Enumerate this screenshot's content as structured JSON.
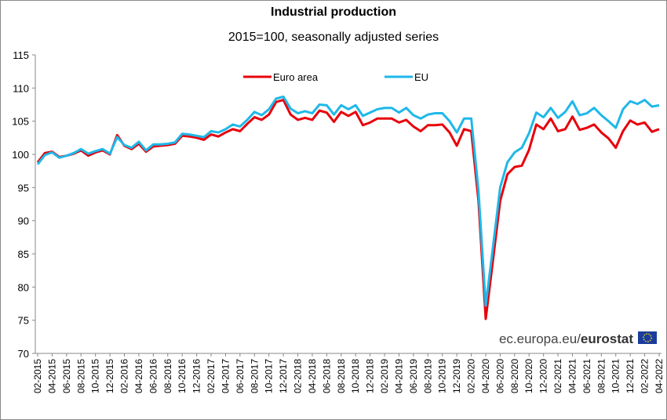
{
  "chart_data": {
    "type": "line",
    "title": "Industrial production",
    "subtitle": "2015=100, seasonally adjusted series",
    "source_prefix": "ec.europa.eu/",
    "source_brand": "eurostat",
    "legend": "top",
    "grid": false,
    "ylim": [
      70,
      115
    ],
    "yticks": [
      70,
      75,
      80,
      85,
      90,
      95,
      100,
      105,
      110,
      115
    ],
    "categories": [
      "02-2015",
      null,
      "04-2015",
      null,
      "06-2015",
      null,
      "08-2015",
      null,
      "10-2015",
      null,
      "12-2015",
      null,
      "02-2016",
      null,
      "04-2016",
      null,
      "06-2016",
      null,
      "08-2016",
      null,
      "10-2016",
      null,
      "12-2016",
      null,
      "02-2017",
      null,
      "04-2017",
      null,
      "06-2017",
      null,
      "08-2017",
      null,
      "10-2017",
      null,
      "12-2017",
      null,
      "02-2018",
      null,
      "04-2018",
      null,
      "06-2018",
      null,
      "08-2018",
      null,
      "10-2018",
      null,
      "12-2018",
      null,
      "02-2019",
      null,
      "04-2019",
      null,
      "06-2019",
      null,
      "08-2019",
      null,
      "10-2019",
      null,
      "12-2019",
      null,
      "02-2020",
      null,
      "04-2020",
      null,
      "06-2020",
      null,
      "08-2020",
      null,
      "10-2020",
      null,
      "12-2020",
      null,
      "02-2021",
      null,
      "04-2021",
      null,
      "06-2021",
      null,
      "08-2021",
      null,
      "10-2021",
      null,
      "12-2021",
      null,
      "02-2022",
      null,
      "04-2022"
    ],
    "series": [
      {
        "name": "Euro area",
        "color": "#e8000b",
        "values": [
          98.8,
          100.2,
          100.4,
          99.6,
          99.8,
          100.1,
          100.6,
          99.8,
          100.3,
          100.6,
          100.0,
          102.9,
          101.3,
          100.8,
          101.6,
          100.4,
          101.2,
          101.3,
          101.4,
          101.6,
          102.8,
          102.7,
          102.5,
          102.2,
          103.0,
          102.7,
          103.3,
          103.8,
          103.5,
          104.6,
          105.6,
          105.2,
          106.0,
          107.9,
          108.2,
          106.0,
          105.2,
          105.5,
          105.2,
          106.6,
          106.3,
          104.9,
          106.4,
          105.8,
          106.4,
          104.4,
          104.8,
          105.4,
          105.4,
          105.4,
          104.8,
          105.2,
          104.2,
          103.5,
          104.4,
          104.4,
          104.5,
          103.3,
          101.3,
          103.8,
          103.5,
          93.0,
          75.2,
          84.0,
          93.0,
          97.0,
          98.1,
          98.3,
          100.7,
          104.5,
          103.8,
          105.4,
          103.5,
          103.8,
          105.7,
          103.7,
          104.0,
          104.5,
          103.3,
          102.4,
          101.0,
          103.5,
          105.1,
          104.5,
          104.8,
          103.4,
          103.8
        ]
      },
      {
        "name": "EU",
        "color": "#1fb8e8",
        "values": [
          98.5,
          99.9,
          100.3,
          99.5,
          99.8,
          100.2,
          100.8,
          100.1,
          100.5,
          100.8,
          100.1,
          102.6,
          101.4,
          101.0,
          101.9,
          100.6,
          101.5,
          101.5,
          101.6,
          101.8,
          103.1,
          103.0,
          102.8,
          102.6,
          103.5,
          103.3,
          103.8,
          104.5,
          104.2,
          105.2,
          106.4,
          105.9,
          106.8,
          108.4,
          108.7,
          106.9,
          106.2,
          106.5,
          106.2,
          107.5,
          107.4,
          106.0,
          107.4,
          106.8,
          107.4,
          105.8,
          106.3,
          106.8,
          107.0,
          107.0,
          106.3,
          107.0,
          105.9,
          105.4,
          106.0,
          106.2,
          106.2,
          105.0,
          103.3,
          105.4,
          105.4,
          94.5,
          77.2,
          86.0,
          95.0,
          98.8,
          100.3,
          101.0,
          103.2,
          106.3,
          105.6,
          107.0,
          105.5,
          106.4,
          108.0,
          105.9,
          106.2,
          107.0,
          105.9,
          105.0,
          104.0,
          106.8,
          108.0,
          107.6,
          108.2,
          107.2,
          107.4
        ]
      }
    ]
  }
}
